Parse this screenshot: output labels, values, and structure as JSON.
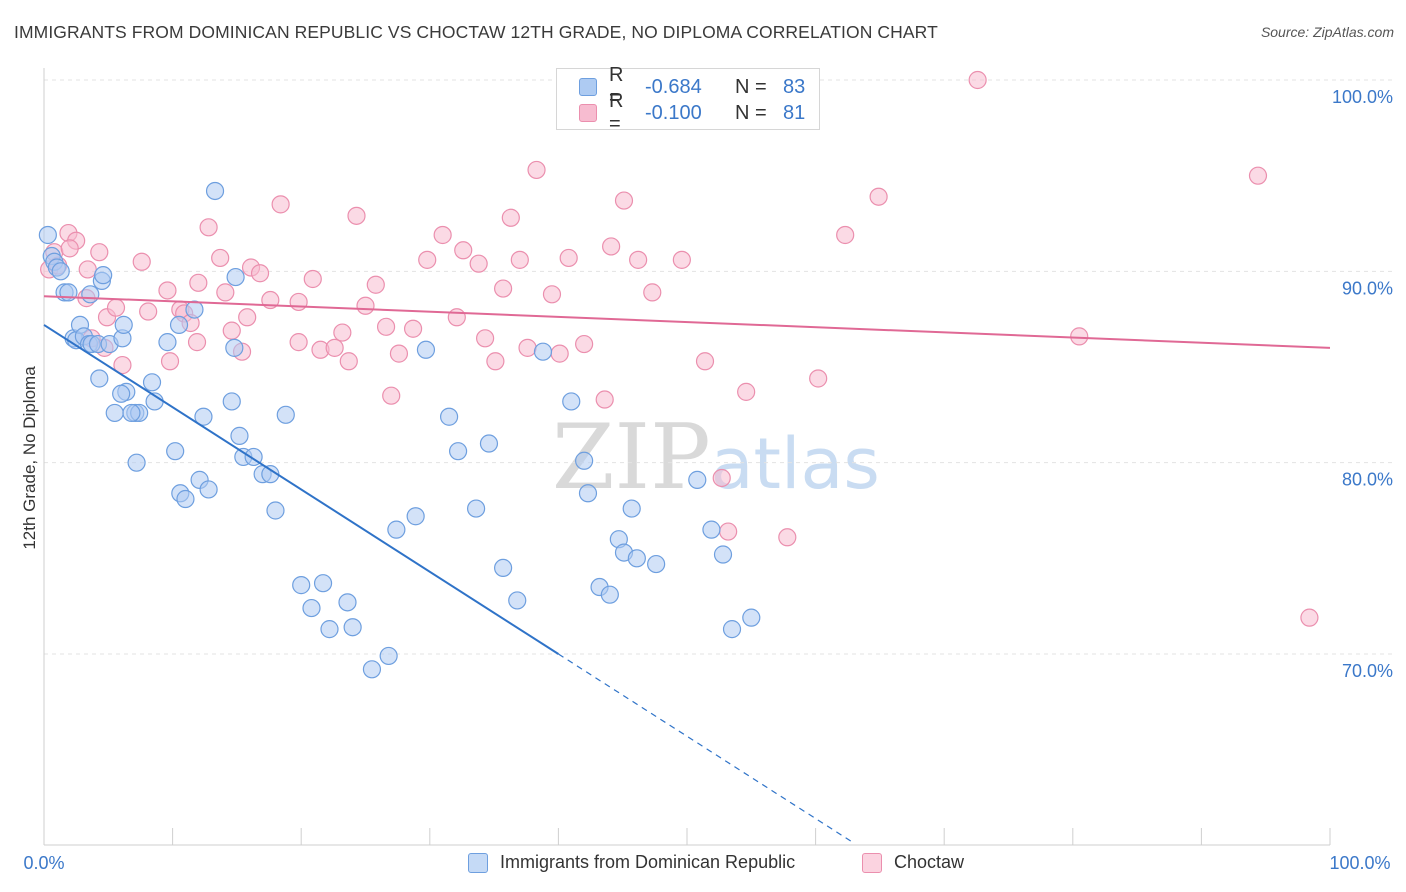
{
  "title": "IMMIGRANTS FROM DOMINICAN REPUBLIC VS CHOCTAW 12TH GRADE, NO DIPLOMA CORRELATION CHART",
  "source": "Source: ZipAtlas.com",
  "watermark": {
    "zip": "ZIP",
    "atlas": "atlas"
  },
  "legend_top": [
    {
      "r_label": "R =",
      "r_value": "-0.684",
      "n_label": "N =",
      "n_value": "83"
    },
    {
      "r_label": "R =",
      "r_value": "-0.100",
      "n_label": "N =",
      "n_value": "81"
    }
  ],
  "colors": {
    "series1_fill": "#aecbf2",
    "series1_stroke": "#6e9fdf",
    "series1_line": "#2f73c8",
    "series2_fill": "#f7bcd0",
    "series2_stroke": "#eb8fae",
    "series2_line": "#e06995",
    "axis_text": "#3b78c9",
    "grid": "#e3e3e3"
  },
  "chart_data": {
    "type": "scatter",
    "title": "IMMIGRANTS FROM DOMINICAN REPUBLIC VS CHOCTAW 12TH GRADE, NO DIPLOMA CORRELATION CHART",
    "xlabel": "",
    "ylabel": "12th Grade, No Diploma",
    "xlim": [
      0,
      100
    ],
    "ylim": [
      60,
      100
    ],
    "x_tick_labels": [
      "0.0%",
      "100.0%"
    ],
    "y_tick_labels": [
      "100.0%",
      "90.0%",
      "80.0%",
      "70.0%"
    ],
    "y_ticks": [
      100,
      90,
      80,
      70
    ],
    "grid": "horizontal dashed",
    "legend": "bottom-center",
    "series": [
      {
        "name": "Immigrants from Dominican Republic",
        "r": -0.684,
        "n": 83,
        "trend": {
          "x0": 0,
          "y0": 87.2,
          "x1": 40,
          "y1": 70.0,
          "dashed_to_x": 63
        },
        "points": [
          [
            0.3,
            91.9
          ],
          [
            0.6,
            90.8
          ],
          [
            0.8,
            90.5
          ],
          [
            1.0,
            90.2
          ],
          [
            1.3,
            90.0
          ],
          [
            1.6,
            88.9
          ],
          [
            1.9,
            88.9
          ],
          [
            2.3,
            86.5
          ],
          [
            2.5,
            86.4
          ],
          [
            2.8,
            87.2
          ],
          [
            3.1,
            86.6
          ],
          [
            3.5,
            86.2
          ],
          [
            3.7,
            86.2
          ],
          [
            4.2,
            86.2
          ],
          [
            3.6,
            88.8
          ],
          [
            4.5,
            89.5
          ],
          [
            4.6,
            89.8
          ],
          [
            4.3,
            84.4
          ],
          [
            5.1,
            86.2
          ],
          [
            6.1,
            86.5
          ],
          [
            6.2,
            87.2
          ],
          [
            7.1,
            82.6
          ],
          [
            7.4,
            82.6
          ],
          [
            6.4,
            83.7
          ],
          [
            6.0,
            83.6
          ],
          [
            5.5,
            82.6
          ],
          [
            6.8,
            82.6
          ],
          [
            7.2,
            80.0
          ],
          [
            8.4,
            84.2
          ],
          [
            8.6,
            83.2
          ],
          [
            9.6,
            86.3
          ],
          [
            11.7,
            88.0
          ],
          [
            10.2,
            80.6
          ],
          [
            10.6,
            78.4
          ],
          [
            11.0,
            78.1
          ],
          [
            12.1,
            79.1
          ],
          [
            12.8,
            78.6
          ],
          [
            12.4,
            82.4
          ],
          [
            14.6,
            83.2
          ],
          [
            14.8,
            86.0
          ],
          [
            15.2,
            81.4
          ],
          [
            15.5,
            80.3
          ],
          [
            16.3,
            80.3
          ],
          [
            17.0,
            79.4
          ],
          [
            17.6,
            79.4
          ],
          [
            18.0,
            77.5
          ],
          [
            18.8,
            82.5
          ],
          [
            20.0,
            73.6
          ],
          [
            20.8,
            72.4
          ],
          [
            21.7,
            73.7
          ],
          [
            22.2,
            71.3
          ],
          [
            23.6,
            72.7
          ],
          [
            24.0,
            71.4
          ],
          [
            25.5,
            69.2
          ],
          [
            26.8,
            69.9
          ],
          [
            27.4,
            76.5
          ],
          [
            28.9,
            77.2
          ],
          [
            29.7,
            85.9
          ],
          [
            31.5,
            82.4
          ],
          [
            32.2,
            80.6
          ],
          [
            33.6,
            77.6
          ],
          [
            34.6,
            81.0
          ],
          [
            35.7,
            74.5
          ],
          [
            36.8,
            72.8
          ],
          [
            38.8,
            85.8
          ],
          [
            41.0,
            83.2
          ],
          [
            42.0,
            80.1
          ],
          [
            42.3,
            78.4
          ],
          [
            43.2,
            73.5
          ],
          [
            44.0,
            73.1
          ],
          [
            44.7,
            76.0
          ],
          [
            45.1,
            75.3
          ],
          [
            45.7,
            77.6
          ],
          [
            46.1,
            75.0
          ],
          [
            47.6,
            74.7
          ],
          [
            50.8,
            79.1
          ],
          [
            51.9,
            76.5
          ],
          [
            52.8,
            75.2
          ],
          [
            53.5,
            71.3
          ],
          [
            55.0,
            71.9
          ],
          [
            13.3,
            94.2
          ],
          [
            14.9,
            89.7
          ],
          [
            10.5,
            87.2
          ]
        ]
      },
      {
        "name": "Choctaw",
        "r": -0.1,
        "n": 81,
        "trend": {
          "x0": 0,
          "y0": 88.7,
          "x1": 100,
          "y1": 86.0
        },
        "points": [
          [
            0.4,
            90.1
          ],
          [
            0.8,
            91.0
          ],
          [
            1.1,
            90.3
          ],
          [
            1.9,
            92.0
          ],
          [
            2.5,
            91.6
          ],
          [
            2.0,
            91.2
          ],
          [
            3.4,
            90.1
          ],
          [
            4.3,
            91.0
          ],
          [
            3.3,
            88.6
          ],
          [
            3.7,
            86.5
          ],
          [
            4.9,
            87.6
          ],
          [
            4.7,
            86.0
          ],
          [
            5.6,
            88.1
          ],
          [
            6.1,
            85.1
          ],
          [
            7.6,
            90.5
          ],
          [
            8.1,
            87.9
          ],
          [
            9.6,
            89.0
          ],
          [
            9.8,
            85.3
          ],
          [
            10.6,
            88.0
          ],
          [
            10.9,
            87.8
          ],
          [
            11.4,
            87.3
          ],
          [
            11.9,
            86.3
          ],
          [
            12.0,
            89.4
          ],
          [
            12.8,
            92.3
          ],
          [
            13.7,
            90.7
          ],
          [
            14.1,
            88.9
          ],
          [
            14.6,
            86.9
          ],
          [
            15.4,
            85.8
          ],
          [
            15.8,
            87.6
          ],
          [
            16.1,
            90.2
          ],
          [
            16.8,
            89.9
          ],
          [
            17.6,
            88.5
          ],
          [
            18.4,
            93.5
          ],
          [
            19.8,
            86.3
          ],
          [
            19.8,
            88.4
          ],
          [
            20.9,
            89.6
          ],
          [
            21.5,
            85.9
          ],
          [
            22.6,
            86.0
          ],
          [
            23.2,
            86.8
          ],
          [
            23.7,
            85.3
          ],
          [
            24.3,
            92.9
          ],
          [
            25.0,
            88.2
          ],
          [
            25.8,
            89.3
          ],
          [
            26.6,
            87.1
          ],
          [
            27.0,
            83.5
          ],
          [
            27.6,
            85.7
          ],
          [
            28.7,
            87.0
          ],
          [
            29.8,
            90.6
          ],
          [
            31.0,
            91.9
          ],
          [
            32.1,
            87.6
          ],
          [
            32.6,
            91.1
          ],
          [
            33.8,
            90.4
          ],
          [
            34.3,
            86.5
          ],
          [
            35.1,
            85.3
          ],
          [
            35.7,
            89.1
          ],
          [
            36.3,
            92.8
          ],
          [
            37.0,
            90.6
          ],
          [
            37.6,
            86.0
          ],
          [
            38.3,
            95.3
          ],
          [
            39.5,
            88.8
          ],
          [
            40.1,
            85.7
          ],
          [
            40.8,
            90.7
          ],
          [
            42.0,
            86.2
          ],
          [
            43.6,
            83.3
          ],
          [
            44.1,
            91.3
          ],
          [
            45.1,
            93.7
          ],
          [
            46.2,
            90.6
          ],
          [
            47.3,
            88.9
          ],
          [
            49.6,
            90.6
          ],
          [
            51.4,
            85.3
          ],
          [
            52.7,
            79.2
          ],
          [
            53.2,
            76.4
          ],
          [
            54.6,
            83.7
          ],
          [
            57.8,
            76.1
          ],
          [
            60.2,
            84.4
          ],
          [
            62.3,
            91.9
          ],
          [
            64.9,
            93.9
          ],
          [
            72.6,
            100.0
          ],
          [
            80.5,
            86.6
          ],
          [
            94.4,
            95.0
          ],
          [
            98.4,
            71.9
          ]
        ]
      }
    ]
  },
  "legend_bottom": [
    "Immigrants from Dominican Republic",
    "Choctaw"
  ]
}
